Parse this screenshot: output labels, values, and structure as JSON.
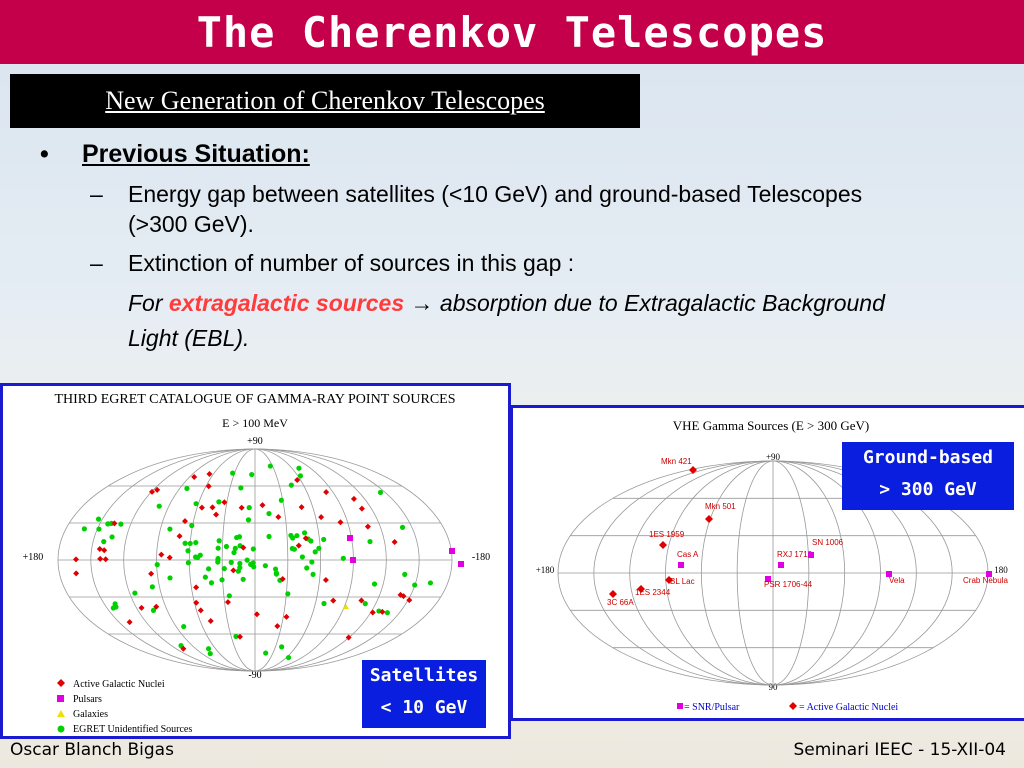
{
  "title": "The Cherenkov Telescopes",
  "subtitle": "New Generation of Cherenkov Telescopes",
  "content": {
    "heading": "Previous Situation:",
    "items": [
      "Energy gap between satellites (<10 GeV) and ground-based Telescopes (>300 GeV).",
      "Extinction of number of sources in this gap :"
    ],
    "italic_prefix": "For ",
    "italic_highlight": "extragalactic sources",
    "italic_arrow": "→",
    "italic_suffix": " absorption due to Extragalactic Background Light (EBL)."
  },
  "egret": {
    "title": "THIRD EGRET CATALOGUE OF GAMMA-RAY POINT SOURCES",
    "energy": "E > 100 MeV",
    "lat_top": "+90",
    "lat_bottom": "-90",
    "lon_left": "+180",
    "lon_right": "-180",
    "legend": [
      "Active Galactic Nuclei",
      "Pulsars",
      "Galaxies",
      "EGRET Unidentified Sources"
    ],
    "colors": {
      "agn": "#e00000",
      "pulsar": "#e000e0",
      "galaxy": "#f0e000",
      "unidentified": "#00d000"
    }
  },
  "vhe": {
    "title": "VHE Gamma Sources (E > 300 GeV)",
    "lat_top": "+90",
    "lat_bottom": "90",
    "lon_left": "+180",
    "lon_right": "180",
    "sources": [
      {
        "name": "Mkn 421",
        "type": "agn"
      },
      {
        "name": "Mkn 501",
        "type": "agn"
      },
      {
        "name": "1ES 1959",
        "type": "agn"
      },
      {
        "name": "Cas A",
        "type": "snr"
      },
      {
        "name": "BL Lac",
        "type": "agn"
      },
      {
        "name": "1ES 2344",
        "type": "agn"
      },
      {
        "name": "3C 66A",
        "type": "agn"
      },
      {
        "name": "RXJ 1713",
        "type": "snr"
      },
      {
        "name": "SN 1006",
        "type": "snr"
      },
      {
        "name": "PSR 1706-44",
        "type": "snr"
      },
      {
        "name": "Vela",
        "type": "snr"
      },
      {
        "name": "Crab Nebula",
        "type": "snr"
      }
    ],
    "legend_snr": "= SNR/Pulsar",
    "legend_agn": "= Active Galactic Nuclei"
  },
  "labels": {
    "ground_line1": "Ground-based",
    "ground_line2": "> 300 GeV",
    "sat_line1": "Satellites",
    "sat_line2": "< 10 GeV"
  },
  "footer": {
    "left": "Oscar Blanch Bigas",
    "right": "Seminari IEEC - 15-XII-04"
  }
}
